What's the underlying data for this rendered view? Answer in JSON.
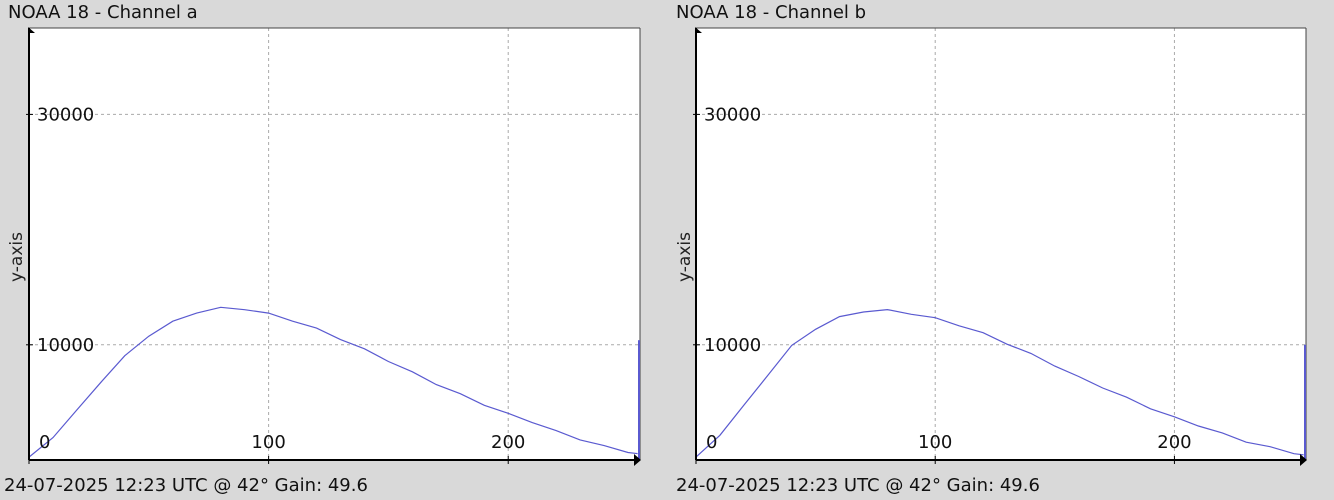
{
  "chart_data": [
    {
      "type": "line",
      "title": "NOAA 18 - Channel a",
      "ylabel": "y-axis",
      "xlabel": "",
      "footer": "24-07-2025 12:23 UTC @ 42° Gain: 49.6",
      "xlim": [
        0,
        255
      ],
      "ylim": [
        0,
        37500
      ],
      "xticks": [
        0,
        100,
        200
      ],
      "yticks": [
        10000,
        30000
      ],
      "grid": true,
      "series": [
        {
          "x": [
            0,
            10,
            20,
            30,
            40,
            50,
            60,
            70,
            80,
            90,
            100,
            110,
            120,
            130,
            140,
            150,
            160,
            170,
            180,
            190,
            200,
            210,
            220,
            230,
            240,
            250,
            254
          ],
          "values": [
            200,
            2000,
            4300,
            6800,
            9000,
            10800,
            12000,
            12800,
            13200,
            13100,
            12700,
            12100,
            11400,
            10500,
            9600,
            8600,
            7600,
            6600,
            5700,
            4800,
            4000,
            3300,
            2500,
            1800,
            1200,
            700,
            500
          ]
        }
      ],
      "spike": {
        "x": 255,
        "value": 10400
      },
      "colors": {
        "line": "#5a5ad0",
        "axis": "#000000",
        "grid": "#aaaaaa"
      }
    },
    {
      "type": "line",
      "title": "NOAA 18 - Channel b",
      "ylabel": "y-axis",
      "xlabel": "",
      "footer": "24-07-2025 12:23 UTC @ 42° Gain: 49.6",
      "xlim": [
        0,
        255
      ],
      "ylim": [
        0,
        37500
      ],
      "xticks": [
        0,
        100,
        200
      ],
      "yticks": [
        10000,
        30000
      ],
      "grid": true,
      "series": [
        {
          "x": [
            0,
            10,
            20,
            30,
            40,
            50,
            60,
            70,
            80,
            90,
            100,
            110,
            120,
            130,
            140,
            150,
            160,
            170,
            180,
            190,
            200,
            210,
            220,
            230,
            240,
            250,
            254
          ],
          "values": [
            200,
            2200,
            4700,
            7400,
            9900,
            11400,
            12400,
            12900,
            13000,
            12700,
            12300,
            11700,
            11000,
            10100,
            9200,
            8200,
            7200,
            6300,
            5400,
            4500,
            3700,
            3000,
            2300,
            1600,
            1100,
            600,
            400
          ]
        }
      ],
      "spike": {
        "x": 255,
        "value": 10000
      },
      "colors": {
        "line": "#5a5ad0",
        "axis": "#000000",
        "grid": "#aaaaaa"
      }
    }
  ]
}
